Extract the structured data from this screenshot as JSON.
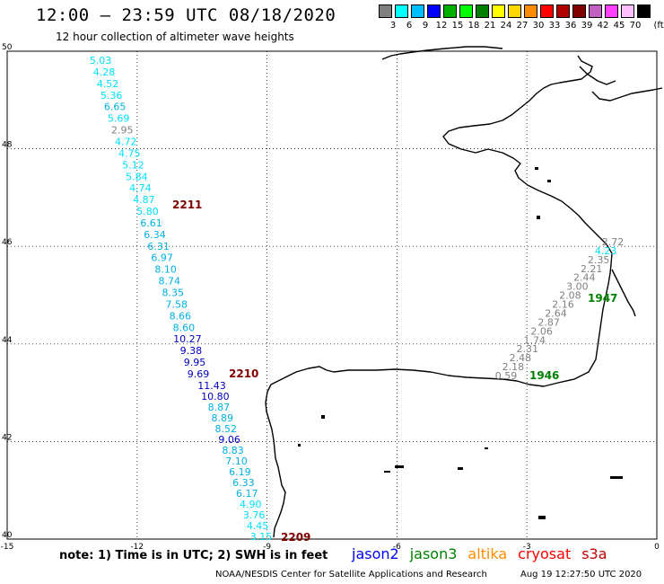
{
  "header": {
    "title": "12:00 — 23:59 UTC 08/18/2020",
    "subtitle": "12 hour collection of altimeter wave heights"
  },
  "legend": {
    "unit": "(ft)",
    "bins": [
      {
        "label": "3",
        "color": "#808080"
      },
      {
        "label": "6",
        "color": "#00ffff"
      },
      {
        "label": "9",
        "color": "#00bfff"
      },
      {
        "label": "12",
        "color": "#0000ff"
      },
      {
        "label": "15",
        "color": "#00b000"
      },
      {
        "label": "18",
        "color": "#00ff00"
      },
      {
        "label": "21",
        "color": "#008000"
      },
      {
        "label": "24",
        "color": "#ffff00"
      },
      {
        "label": "27",
        "color": "#ffd700"
      },
      {
        "label": "30",
        "color": "#ff8c00"
      },
      {
        "label": "33",
        "color": "#ff0000"
      },
      {
        "label": "36",
        "color": "#b00000"
      },
      {
        "label": "39",
        "color": "#800000"
      },
      {
        "label": "42",
        "color": "#c060c0"
      },
      {
        "label": "45",
        "color": "#ff40ff"
      },
      {
        "label": "70",
        "color": "#ffc0ff"
      },
      {
        "label": "",
        "color": "#000000"
      }
    ]
  },
  "map": {
    "lon_range": [
      -15,
      0
    ],
    "lat_range": [
      40,
      50
    ],
    "lon_ticks": [
      "-15",
      "-12",
      "-9",
      "-6",
      "-3",
      "0"
    ],
    "lat_ticks": [
      "50",
      "48",
      "46",
      "44",
      "42",
      "40"
    ],
    "grid": "dotted",
    "track_colors": {
      "dark": "#800000",
      "green": "#008000"
    },
    "point_colors": {
      "grey": "#808080",
      "cyan": "#00e0ff",
      "teal": "#00b0e0",
      "blue": "#0000c0"
    }
  },
  "tracks": [
    {
      "time_label": "2211",
      "time_color": "dark",
      "points": [
        {
          "v": "5.03",
          "c": "cyan"
        },
        {
          "v": "4.28",
          "c": "cyan"
        },
        {
          "v": "4.52",
          "c": "cyan"
        },
        {
          "v": "5.36",
          "c": "cyan"
        },
        {
          "v": "6.65",
          "c": "teal"
        },
        {
          "v": "5.69",
          "c": "cyan"
        },
        {
          "v": "2.95",
          "c": "grey"
        },
        {
          "v": "4.72",
          "c": "cyan"
        },
        {
          "v": "4.75",
          "c": "cyan"
        },
        {
          "v": "5.12",
          "c": "cyan"
        },
        {
          "v": "5.84",
          "c": "cyan"
        },
        {
          "v": "4.74",
          "c": "cyan"
        },
        {
          "v": "4.87",
          "c": "cyan"
        },
        {
          "v": "5.80",
          "c": "cyan"
        },
        {
          "v": "6.61",
          "c": "teal"
        },
        {
          "v": "6.34",
          "c": "teal"
        },
        {
          "v": "6.31",
          "c": "teal"
        },
        {
          "v": "6.97",
          "c": "teal"
        },
        {
          "v": "8.10",
          "c": "teal"
        },
        {
          "v": "8.74",
          "c": "teal"
        },
        {
          "v": "8.35",
          "c": "teal"
        },
        {
          "v": "7.58",
          "c": "teal"
        },
        {
          "v": "8.66",
          "c": "teal"
        },
        {
          "v": "8.60",
          "c": "teal"
        },
        {
          "v": "10.27",
          "c": "blue"
        },
        {
          "v": "9.38",
          "c": "blue"
        },
        {
          "v": "9.95",
          "c": "blue"
        },
        {
          "v": "9.69",
          "c": "blue"
        }
      ]
    },
    {
      "time_label": "2210",
      "time_color": "dark",
      "points": [
        {
          "v": "11.43",
          "c": "blue"
        },
        {
          "v": "10.80",
          "c": "blue"
        },
        {
          "v": "8.87",
          "c": "teal"
        },
        {
          "v": "8.89",
          "c": "teal"
        },
        {
          "v": "8.52",
          "c": "teal"
        },
        {
          "v": "9.06",
          "c": "blue"
        },
        {
          "v": "8.83",
          "c": "teal"
        },
        {
          "v": "7.10",
          "c": "teal"
        },
        {
          "v": "6.19",
          "c": "teal"
        },
        {
          "v": "6.33",
          "c": "teal"
        },
        {
          "v": "6.17",
          "c": "teal"
        },
        {
          "v": "4.90",
          "c": "cyan"
        },
        {
          "v": "3.76",
          "c": "cyan"
        },
        {
          "v": "4.45",
          "c": "cyan"
        },
        {
          "v": "3.15",
          "c": "cyan"
        }
      ]
    },
    {
      "time_label": "2209",
      "time_color": "dark",
      "points": []
    },
    {
      "time_label": "1947",
      "time_color": "green",
      "points": [
        {
          "v": "2.72",
          "c": "grey"
        },
        {
          "v": "4.23",
          "c": "cyan"
        },
        {
          "v": "2.35",
          "c": "grey"
        },
        {
          "v": "2.21",
          "c": "grey"
        },
        {
          "v": "2.44",
          "c": "grey"
        },
        {
          "v": "3.00",
          "c": "grey"
        },
        {
          "v": "2.08",
          "c": "grey"
        },
        {
          "v": "2.16",
          "c": "grey"
        },
        {
          "v": "2.64",
          "c": "grey"
        },
        {
          "v": "2.87",
          "c": "grey"
        },
        {
          "v": "2.06",
          "c": "grey"
        },
        {
          "v": "1.74",
          "c": "grey"
        },
        {
          "v": "2.31",
          "c": "grey"
        },
        {
          "v": "2.48",
          "c": "grey"
        },
        {
          "v": "2.18",
          "c": "grey"
        },
        {
          "v": "0.59",
          "c": "grey"
        }
      ]
    },
    {
      "time_label": "1946",
      "time_color": "green",
      "points": []
    }
  ],
  "footer": {
    "note": "note:  1) Time is in UTC;  2) SWH is in feet",
    "satellites": [
      {
        "name": "jason2",
        "color": "#0000ff"
      },
      {
        "name": "jason3",
        "color": "#008000"
      },
      {
        "name": "altika",
        "color": "#ff8c00"
      },
      {
        "name": "cryosat",
        "color": "#ff0000"
      },
      {
        "name": "s3a",
        "color": "#c00000"
      }
    ],
    "credit": "NOAA/NESDIS Center for Satellite Applications and Research",
    "timestamp": "Aug 19 12:27:50 UTC 2020"
  }
}
